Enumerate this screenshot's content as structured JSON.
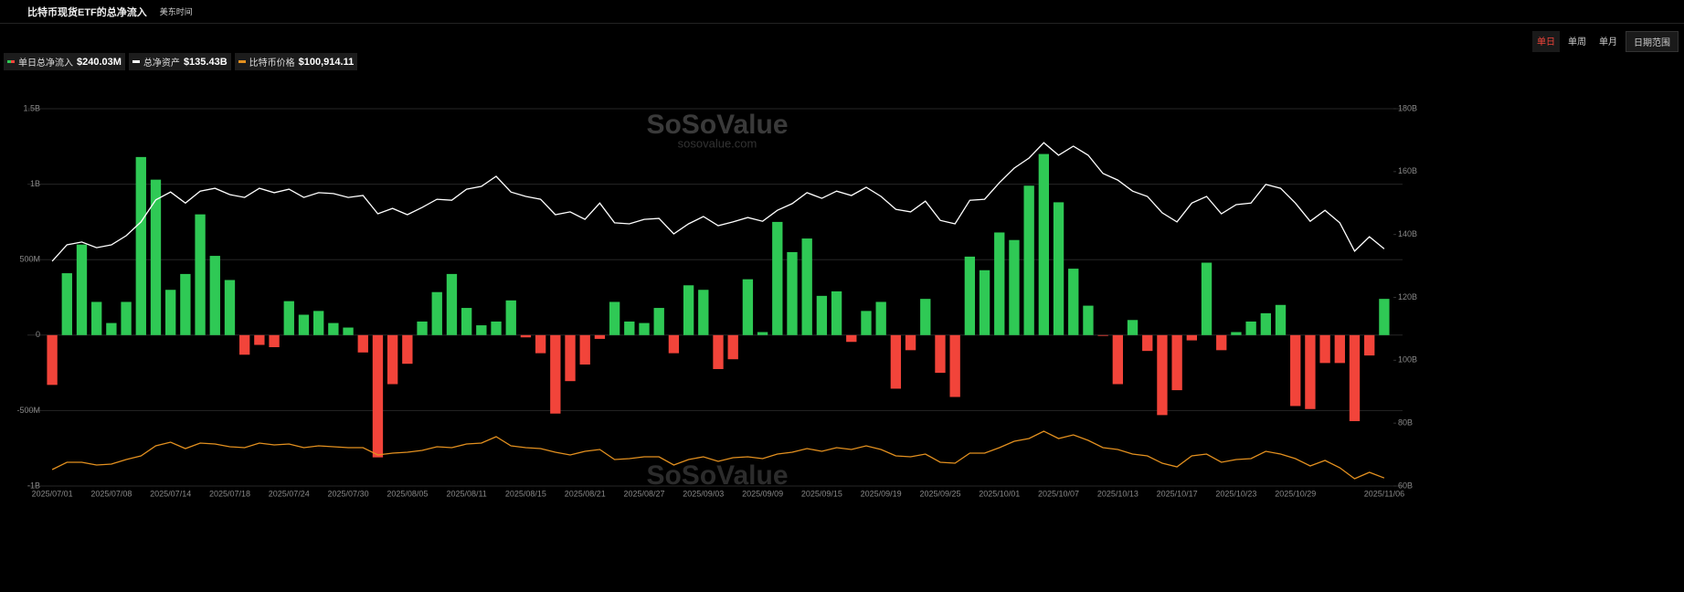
{
  "header": {
    "title": "比特币现货ETF的总净流入",
    "timezone": "美东时间"
  },
  "controls": {
    "periods": [
      "单日",
      "单周",
      "单月"
    ],
    "range": "日期范围"
  },
  "watermark": [
    "SoSoValue",
    "sosovalue.com"
  ],
  "chart_data": {
    "type": "bar-line",
    "categories": [
      "2025/07/01",
      null,
      null,
      null,
      "2025/07/08",
      null,
      null,
      null,
      "2025/07/14",
      null,
      null,
      null,
      "2025/07/18",
      null,
      null,
      null,
      "2025/07/24",
      null,
      null,
      null,
      "2025/07/30",
      null,
      null,
      null,
      "2025/08/05",
      null,
      null,
      null,
      "2025/08/11",
      null,
      null,
      null,
      "2025/08/15",
      null,
      null,
      null,
      "2025/08/21",
      null,
      null,
      null,
      "2025/08/27",
      null,
      null,
      null,
      "2025/09/03",
      null,
      null,
      null,
      "2025/09/09",
      null,
      null,
      null,
      "2025/09/15",
      null,
      null,
      null,
      "2025/09/19",
      null,
      null,
      null,
      "2025/09/25",
      null,
      null,
      null,
      "2025/10/01",
      null,
      null,
      null,
      "2025/10/07",
      null,
      null,
      null,
      "2025/10/13",
      null,
      null,
      null,
      "2025/10/17",
      null,
      null,
      null,
      "2025/10/23",
      null,
      null,
      null,
      "2025/10/29",
      null,
      null,
      null,
      null,
      null,
      "2025/11/06"
    ],
    "series": [
      {
        "name": "单日总净流入",
        "type": "bar",
        "color": "#2fc955",
        "negative_color": "#f2443a",
        "latest_label": "$240.03M",
        "values": [
          -330,
          410,
          600,
          220,
          80,
          220,
          1180,
          1030,
          300,
          405,
          800,
          525,
          365,
          -130,
          -65,
          -80,
          225,
          135,
          160,
          80,
          50,
          -115,
          -810,
          -325,
          -190,
          90,
          285,
          405,
          180,
          65,
          90,
          230,
          -15,
          -120,
          -520,
          -305,
          -195,
          -25,
          220,
          90,
          80,
          180,
          -120,
          330,
          300,
          -225,
          -160,
          370,
          20,
          750,
          550,
          640,
          260,
          290,
          -45,
          160,
          220,
          -355,
          -100,
          240,
          -250,
          -410,
          520,
          430,
          680,
          630,
          990,
          1200,
          880,
          440,
          195,
          -5,
          -325,
          100,
          -105,
          -530,
          -365,
          -35,
          480,
          -100,
          20,
          90,
          145,
          200,
          -470,
          -490,
          -185,
          -185,
          -570,
          -135,
          240.03
        ]
      },
      {
        "name": "总净资产",
        "type": "line",
        "axis": "y2",
        "color": "#ffffff",
        "latest_label": "$135.43B",
        "values": [
          131.5,
          136.7,
          137.6,
          135.8,
          136.7,
          139.6,
          144,
          151,
          153.5,
          150,
          153.8,
          154.7,
          152.7,
          151.8,
          154.7,
          153.3,
          154.4,
          151.8,
          153.3,
          153,
          151.8,
          152.4,
          146.6,
          148.3,
          146.3,
          148.6,
          151.2,
          150.9,
          154.4,
          155.3,
          158.5,
          153.5,
          152.1,
          151.2,
          146.3,
          147.2,
          144.8,
          150,
          143.7,
          143.4,
          144.8,
          145.1,
          140.2,
          143.4,
          145.7,
          142.8,
          144,
          145.4,
          144.2,
          147.7,
          149.8,
          153.3,
          151.5,
          153.8,
          152.4,
          155,
          152.1,
          148,
          147.2,
          150.6,
          144.5,
          143.4,
          150.9,
          151.2,
          156.5,
          161.1,
          164.3,
          169.2,
          165.2,
          168.1,
          165.2,
          159.4,
          157.3,
          153.8,
          152.1,
          146.9,
          144,
          150,
          152.1,
          146.6,
          149.5,
          150,
          155.9,
          154.7,
          150,
          144.2,
          147.7,
          143.7,
          134.7,
          139.3,
          135.43
        ]
      },
      {
        "name": "比特币价格",
        "type": "line",
        "axis": "y3",
        "color": "#e3901f",
        "latest_label": "$100,914.11",
        "values": [
          105500,
          109500,
          109500,
          108000,
          108500,
          111000,
          113000,
          118500,
          120500,
          117000,
          120000,
          119500,
          118000,
          117500,
          120000,
          119000,
          119500,
          117500,
          118500,
          118000,
          117500,
          117500,
          113500,
          114500,
          115000,
          116000,
          118000,
          117500,
          119500,
          120000,
          123500,
          118500,
          117500,
          117000,
          115000,
          113500,
          115500,
          116500,
          111000,
          111500,
          112500,
          112500,
          108000,
          111000,
          112500,
          110000,
          112000,
          112500,
          111500,
          114000,
          115000,
          117000,
          115500,
          117500,
          116500,
          118500,
          116500,
          113000,
          112500,
          114000,
          109500,
          109000,
          114500,
          114500,
          117500,
          121000,
          122500,
          126500,
          122500,
          124500,
          121500,
          117500,
          116500,
          114000,
          113000,
          109000,
          107000,
          113000,
          114000,
          109500,
          111000,
          111500,
          115500,
          114000,
          111500,
          107500,
          110500,
          106500,
          100500,
          104000,
          100914.11
        ]
      }
    ],
    "ylim": [
      -1000,
      1500
    ],
    "yticks": [
      {
        "value": 1500,
        "label": "1.5B"
      },
      {
        "value": 1000,
        "label": "1B"
      },
      {
        "value": 500,
        "label": "500M"
      },
      0,
      {
        "value": -500,
        "label": "-500M"
      },
      {
        "value": -1000,
        "label": "-1B"
      }
    ],
    "y2lim": [
      60,
      180
    ],
    "y2ticks": [
      {
        "value": 180,
        "label": "180B"
      },
      {
        "value": 160,
        "label": "160B"
      },
      {
        "value": 140,
        "label": "140B"
      },
      {
        "value": 120,
        "label": "120B"
      },
      {
        "value": 100,
        "label": "100B"
      },
      {
        "value": 80,
        "label": "80B"
      },
      {
        "value": 60,
        "label": "60B"
      }
    ],
    "y3lim": [
      96500,
      303000
    ],
    "grid": true
  }
}
